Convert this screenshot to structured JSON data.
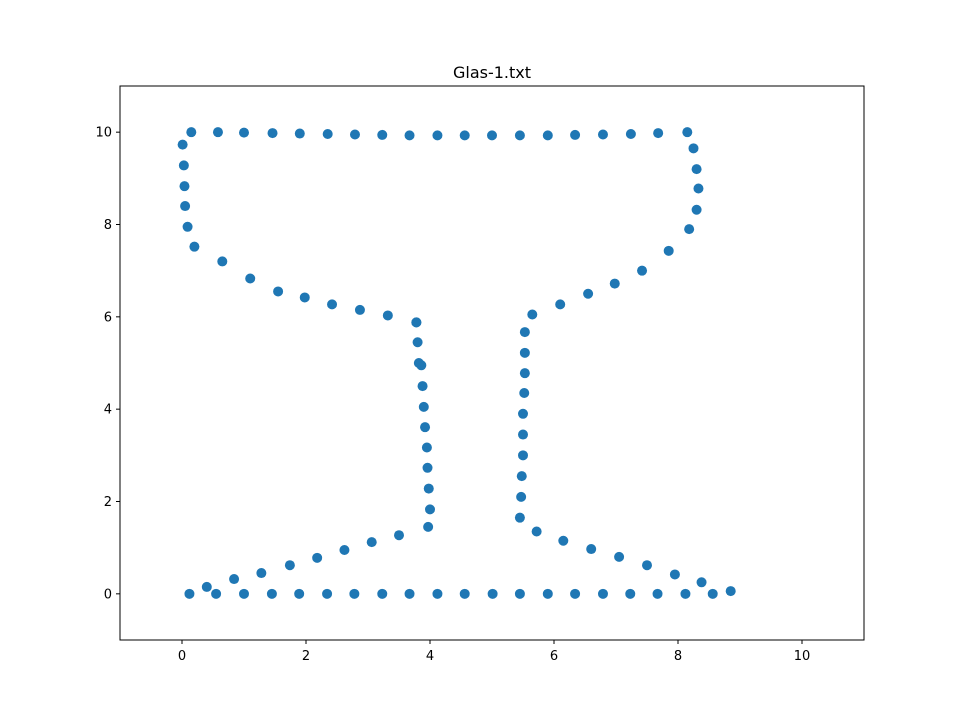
{
  "chart_data": {
    "type": "scatter",
    "title": "Glas-1.txt",
    "xlabel": "",
    "ylabel": "",
    "xlim": [
      -1,
      11
    ],
    "ylim": [
      -1,
      11
    ],
    "xticks": [
      "0",
      "2",
      "4",
      "6",
      "8",
      "10"
    ],
    "yticks": [
      "0",
      "2",
      "4",
      "6",
      "8",
      "10"
    ],
    "grid": false,
    "color": "#1f77b4",
    "series": [
      {
        "points": [
          [
            0.12,
            0.0
          ],
          [
            0.4,
            0.15
          ],
          [
            0.55,
            0.0
          ],
          [
            0.84,
            0.32
          ],
          [
            1.0,
            0.0
          ],
          [
            1.28,
            0.45
          ],
          [
            1.45,
            0.0
          ],
          [
            1.74,
            0.62
          ],
          [
            1.89,
            0.0
          ],
          [
            2.18,
            0.78
          ],
          [
            2.34,
            0.0
          ],
          [
            2.62,
            0.95
          ],
          [
            2.78,
            0.0
          ],
          [
            3.06,
            1.12
          ],
          [
            3.23,
            0.0
          ],
          [
            3.5,
            1.27
          ],
          [
            3.67,
            0.0
          ],
          [
            3.97,
            1.45
          ],
          [
            4.12,
            0.0
          ],
          [
            4.0,
            1.83
          ],
          [
            4.56,
            0.0
          ],
          [
            3.98,
            2.28
          ],
          [
            5.01,
            0.0
          ],
          [
            3.96,
            2.73
          ],
          [
            5.45,
            0.0
          ],
          [
            3.95,
            3.17
          ],
          [
            5.9,
            0.0
          ],
          [
            3.92,
            3.61
          ],
          [
            6.34,
            0.0
          ],
          [
            3.9,
            4.05
          ],
          [
            6.79,
            0.0
          ],
          [
            3.88,
            4.5
          ],
          [
            7.23,
            0.0
          ],
          [
            3.86,
            4.95
          ],
          [
            7.67,
            0.0
          ],
          [
            3.82,
            5.0
          ],
          [
            8.12,
            0.0
          ],
          [
            3.8,
            5.45
          ],
          [
            8.56,
            0.0
          ],
          [
            3.78,
            5.88
          ],
          [
            8.38,
            0.25
          ],
          [
            8.85,
            0.06
          ],
          [
            7.95,
            0.42
          ],
          [
            7.5,
            0.62
          ],
          [
            7.05,
            0.8
          ],
          [
            6.6,
            0.97
          ],
          [
            6.15,
            1.15
          ],
          [
            5.72,
            1.35
          ],
          [
            5.45,
            1.65
          ],
          [
            5.47,
            2.1
          ],
          [
            5.48,
            2.55
          ],
          [
            5.5,
            3.0
          ],
          [
            5.5,
            3.45
          ],
          [
            5.5,
            3.9
          ],
          [
            5.52,
            4.35
          ],
          [
            5.53,
            4.78
          ],
          [
            5.53,
            5.22
          ],
          [
            5.53,
            5.67
          ],
          [
            5.65,
            6.05
          ],
          [
            6.1,
            6.27
          ],
          [
            6.55,
            6.5
          ],
          [
            6.98,
            6.72
          ],
          [
            7.42,
            7.0
          ],
          [
            7.85,
            7.43
          ],
          [
            8.18,
            7.9
          ],
          [
            8.3,
            8.32
          ],
          [
            8.33,
            8.78
          ],
          [
            8.3,
            9.2
          ],
          [
            8.25,
            9.65
          ],
          [
            8.15,
            10.0
          ],
          [
            7.68,
            9.98
          ],
          [
            7.24,
            9.96
          ],
          [
            6.79,
            9.95
          ],
          [
            6.34,
            9.94
          ],
          [
            5.9,
            9.93
          ],
          [
            5.45,
            9.93
          ],
          [
            5.0,
            9.93
          ],
          [
            4.56,
            9.93
          ],
          [
            4.12,
            9.93
          ],
          [
            3.67,
            9.93
          ],
          [
            3.23,
            9.94
          ],
          [
            2.79,
            9.95
          ],
          [
            2.35,
            9.96
          ],
          [
            1.9,
            9.97
          ],
          [
            1.46,
            9.98
          ],
          [
            1.0,
            9.99
          ],
          [
            0.58,
            10.0
          ],
          [
            0.15,
            10.0
          ],
          [
            0.01,
            9.73
          ],
          [
            0.03,
            9.28
          ],
          [
            0.04,
            8.83
          ],
          [
            0.05,
            8.4
          ],
          [
            0.09,
            7.95
          ],
          [
            0.2,
            7.52
          ],
          [
            0.65,
            7.2
          ],
          [
            1.1,
            6.83
          ],
          [
            1.55,
            6.55
          ],
          [
            1.98,
            6.42
          ],
          [
            2.42,
            6.27
          ],
          [
            2.87,
            6.15
          ],
          [
            3.32,
            6.03
          ],
          [
            3.78,
            5.88
          ]
        ]
      }
    ]
  }
}
